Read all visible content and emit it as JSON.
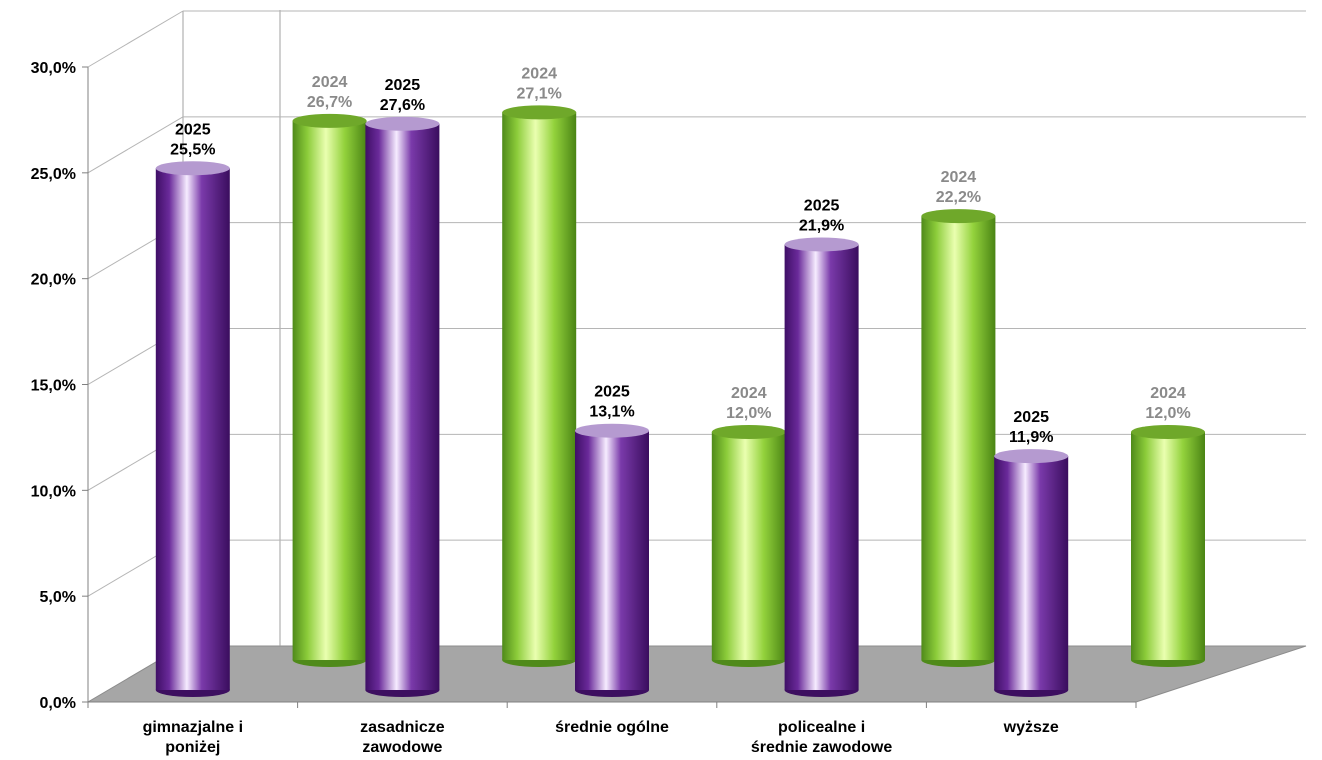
{
  "chart_data": {
    "type": "bar",
    "categories": [
      [
        "gimnazjalne i",
        "poniżej"
      ],
      [
        "zasadnicze",
        "zawodowe"
      ],
      [
        "średnie ogólne"
      ],
      [
        "policealne i",
        "średnie zawodowe"
      ],
      [
        "wyższe"
      ]
    ],
    "series": [
      {
        "name": "2025",
        "values": [
          25.5,
          27.6,
          13.1,
          21.9,
          11.9
        ],
        "labels": [
          "25,5%",
          "27,6%",
          "13,1%",
          "21,9%",
          "11,9%"
        ],
        "color": "#6a2a9a"
      },
      {
        "name": "2024",
        "values": [
          26.7,
          27.1,
          12.0,
          22.2,
          12.0
        ],
        "labels": [
          "26,7%",
          "27,1%",
          "12,0%",
          "22,2%",
          "12,0%"
        ],
        "color": "#8ccc3a"
      }
    ],
    "ylim": [
      0,
      30
    ],
    "y_ticks": [
      "0,0%",
      "5,0%",
      "10,0%",
      "15,0%",
      "20,0%",
      "25,0%",
      "30,0%"
    ],
    "grid": true,
    "style": "3d-cylinder",
    "xlabel": "",
    "ylabel": "",
    "title": ""
  }
}
